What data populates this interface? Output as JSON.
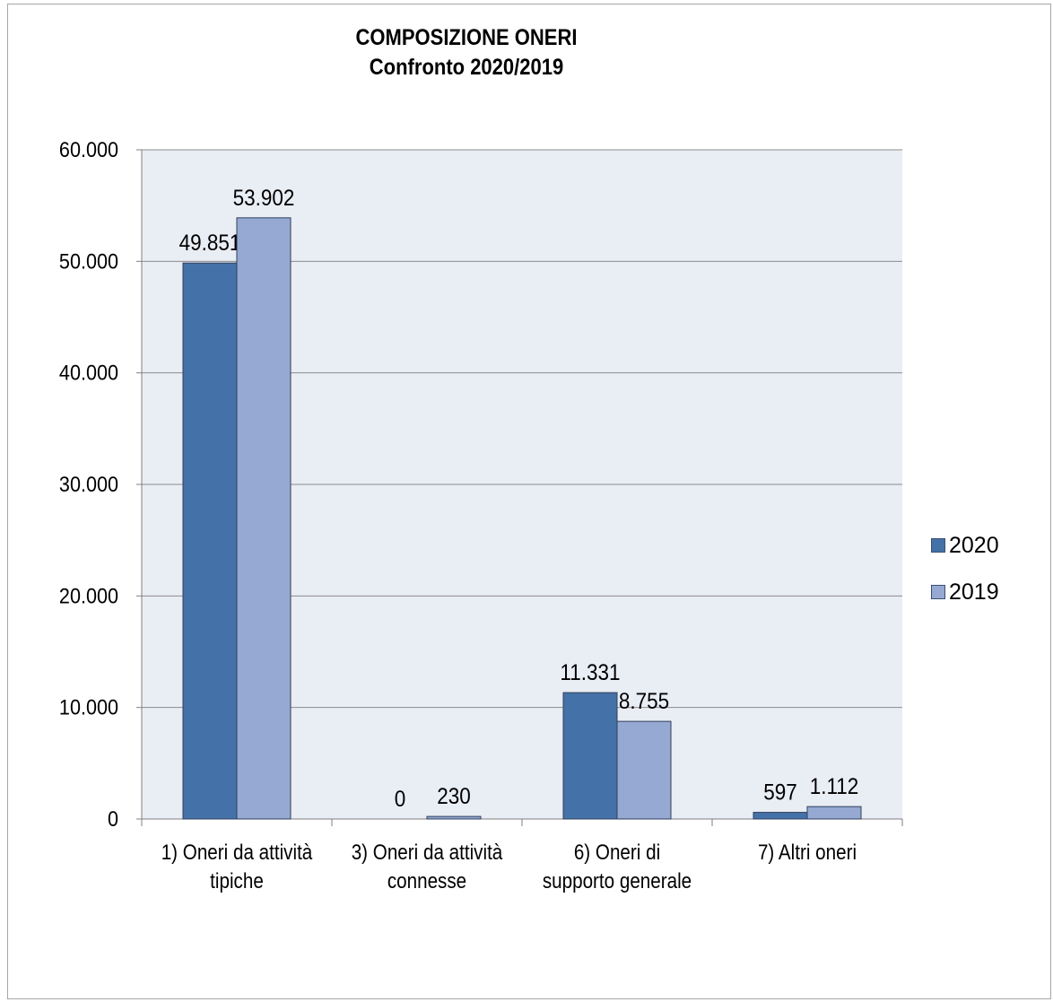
{
  "chart_data": {
    "type": "bar",
    "title": "COMPOSIZIONE ONERI",
    "subtitle": "Confronto 2020/2019",
    "categories": [
      [
        "1) Oneri da attività",
        "tipiche"
      ],
      [
        "3) Oneri da attività",
        "connesse"
      ],
      [
        "6) Oneri di",
        "supporto generale"
      ],
      [
        "7) Altri oneri"
      ]
    ],
    "series": [
      {
        "name": "2020",
        "values": [
          49851,
          0,
          11331,
          597
        ],
        "labels": [
          "49.851",
          "0",
          "11.331",
          "597"
        ],
        "color": "#4472a8"
      },
      {
        "name": "2019",
        "values": [
          53902,
          230,
          8755,
          1112
        ],
        "labels": [
          "53.902",
          "230",
          "8.755",
          "1.112"
        ],
        "color": "#95a9d2"
      }
    ],
    "ylim": [
      0,
      60000
    ],
    "yticks": [
      0,
      10000,
      20000,
      30000,
      40000,
      50000,
      60000
    ],
    "ytick_labels": [
      "0",
      "10.000",
      "20.000",
      "30.000",
      "40.000",
      "50.000",
      "60.000"
    ],
    "xlabel": "",
    "ylabel": "",
    "grid": true,
    "legend_position": "right",
    "plot_background": "#e9edf4"
  }
}
